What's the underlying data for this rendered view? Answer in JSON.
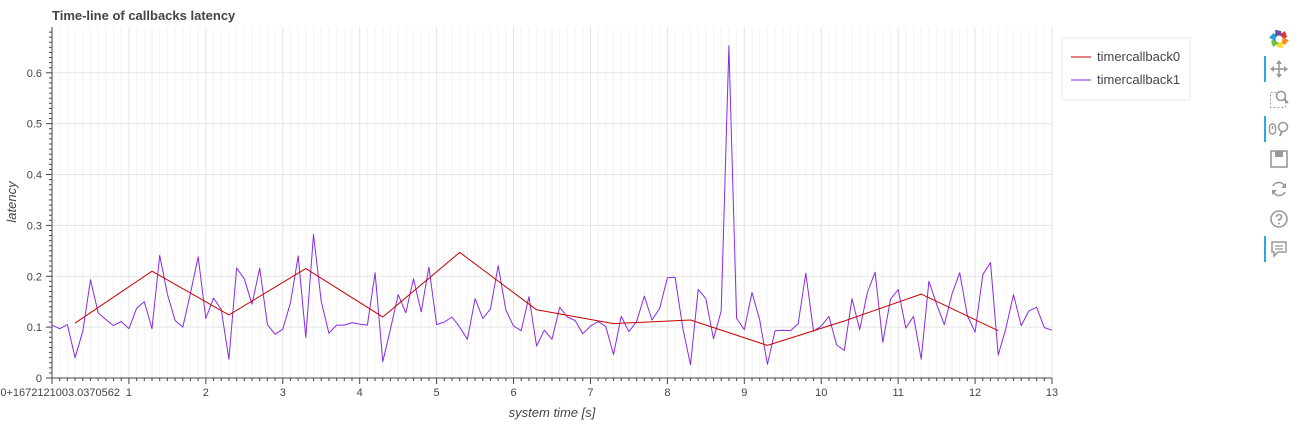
{
  "chart_data": {
    "type": "line",
    "title": "Time-line of callbacks latency",
    "xlabel": "system time [s]",
    "ylabel": "latency",
    "xlim": [
      0,
      13
    ],
    "ylim": [
      0,
      0.69
    ],
    "x_ticks": [
      {
        "value": 0,
        "label": "0+1672121003.0370562"
      },
      {
        "value": 1,
        "label": "1"
      },
      {
        "value": 2,
        "label": "2"
      },
      {
        "value": 3,
        "label": "3"
      },
      {
        "value": 4,
        "label": "4"
      },
      {
        "value": 5,
        "label": "5"
      },
      {
        "value": 6,
        "label": "6"
      },
      {
        "value": 7,
        "label": "7"
      },
      {
        "value": 8,
        "label": "8"
      },
      {
        "value": 9,
        "label": "9"
      },
      {
        "value": 10,
        "label": "10"
      },
      {
        "value": 11,
        "label": "11"
      },
      {
        "value": 12,
        "label": "12"
      },
      {
        "value": 13,
        "label": "13"
      }
    ],
    "y_ticks": [
      {
        "value": 0,
        "label": "0"
      },
      {
        "value": 0.1,
        "label": "0.1"
      },
      {
        "value": 0.2,
        "label": "0.2"
      },
      {
        "value": 0.3,
        "label": "0.3"
      },
      {
        "value": 0.4,
        "label": "0.4"
      },
      {
        "value": 0.5,
        "label": "0.5"
      },
      {
        "value": 0.6,
        "label": "0.6"
      }
    ],
    "grid": true,
    "legend_position": "outside-right",
    "series": [
      {
        "name": "timercallback0",
        "color": "#cc0000",
        "x": [
          0.3,
          1.3,
          2.3,
          3.3,
          4.3,
          5.3,
          6.3,
          7.3,
          8.3,
          9.3,
          10.3,
          11.3,
          12.3
        ],
        "y": [
          0.108,
          0.21,
          0.124,
          0.215,
          0.12,
          0.247,
          0.134,
          0.107,
          0.114,
          0.064,
          0.112,
          0.165,
          0.093
        ]
      },
      {
        "name": "timercallback1",
        "color": "#8a2be2",
        "x": [
          0.0,
          0.1,
          0.2,
          0.3,
          0.4,
          0.5,
          0.6,
          0.7,
          0.8,
          0.9,
          1.0,
          1.1,
          1.2,
          1.3,
          1.4,
          1.5,
          1.6,
          1.7,
          1.8,
          1.9,
          2.0,
          2.1,
          2.2,
          2.3,
          2.4,
          2.5,
          2.6,
          2.7,
          2.8,
          2.9,
          3.0,
          3.1,
          3.2,
          3.3,
          3.4,
          3.5,
          3.6,
          3.7,
          3.8,
          3.9,
          4.0,
          4.1,
          4.2,
          4.3,
          4.4,
          4.5,
          4.6,
          4.7,
          4.8,
          4.9,
          5.0,
          5.1,
          5.2,
          5.3,
          5.4,
          5.5,
          5.6,
          5.7,
          5.8,
          5.9,
          6.0,
          6.1,
          6.2,
          6.3,
          6.4,
          6.5,
          6.6,
          6.7,
          6.8,
          6.9,
          7.0,
          7.1,
          7.2,
          7.3,
          7.4,
          7.5,
          7.6,
          7.7,
          7.8,
          7.9,
          8.0,
          8.1,
          8.2,
          8.3,
          8.4,
          8.5,
          8.6,
          8.7,
          8.8,
          8.9,
          9.0,
          9.1,
          9.2,
          9.3,
          9.4,
          9.5,
          9.6,
          9.7,
          9.8,
          9.9,
          10.0,
          10.1,
          10.2,
          10.3,
          10.4,
          10.5,
          10.6,
          10.7,
          10.8,
          10.9,
          11.0,
          11.1,
          11.2,
          11.3,
          11.4,
          11.5,
          11.6,
          11.7,
          11.8,
          11.9,
          12.0,
          12.1,
          12.2,
          12.3,
          12.4,
          12.5,
          12.6,
          12.7,
          12.8,
          12.9,
          13.0
        ],
        "y": [
          0.104,
          0.097,
          0.105,
          0.04,
          0.092,
          0.193,
          0.128,
          0.115,
          0.103,
          0.111,
          0.097,
          0.137,
          0.15,
          0.097,
          0.241,
          0.165,
          0.113,
          0.1,
          0.167,
          0.238,
          0.117,
          0.157,
          0.135,
          0.037,
          0.216,
          0.195,
          0.145,
          0.216,
          0.105,
          0.086,
          0.096,
          0.148,
          0.24,
          0.08,
          0.282,
          0.151,
          0.088,
          0.104,
          0.104,
          0.109,
          0.106,
          0.104,
          0.207,
          0.032,
          0.097,
          0.164,
          0.128,
          0.195,
          0.13,
          0.218,
          0.105,
          0.11,
          0.12,
          0.1,
          0.076,
          0.156,
          0.117,
          0.136,
          0.221,
          0.134,
          0.102,
          0.093,
          0.16,
          0.063,
          0.094,
          0.076,
          0.139,
          0.12,
          0.113,
          0.087,
          0.102,
          0.111,
          0.101,
          0.046,
          0.121,
          0.091,
          0.111,
          0.161,
          0.114,
          0.137,
          0.197,
          0.198,
          0.098,
          0.026,
          0.174,
          0.156,
          0.077,
          0.132,
          0.653,
          0.117,
          0.095,
          0.168,
          0.114,
          0.027,
          0.093,
          0.094,
          0.093,
          0.107,
          0.206,
          0.092,
          0.102,
          0.121,
          0.065,
          0.054,
          0.156,
          0.095,
          0.168,
          0.208,
          0.07,
          0.155,
          0.174,
          0.098,
          0.121,
          0.037,
          0.19,
          0.145,
          0.105,
          0.165,
          0.207,
          0.122,
          0.09,
          0.203,
          0.227,
          0.045,
          0.097,
          0.164,
          0.103,
          0.132,
          0.139,
          0.099,
          0.094
        ]
      }
    ]
  },
  "toolbar": {
    "logo_colors": [
      "#e2332e",
      "#f58c29",
      "#fbdc2b",
      "#6cbd45",
      "#1fa2d9",
      "#6a4fa3"
    ],
    "accent_color": "#26aae1",
    "tools": [
      {
        "icon": "pan-icon",
        "active": true
      },
      {
        "icon": "box-zoom-icon",
        "active": false
      },
      {
        "icon": "wheel-zoom-icon",
        "active": true
      },
      {
        "icon": "save-icon",
        "active": false
      },
      {
        "icon": "reset-icon",
        "active": false
      },
      {
        "icon": "help-icon",
        "active": false
      },
      {
        "icon": "hover-icon",
        "active": true
      }
    ]
  }
}
